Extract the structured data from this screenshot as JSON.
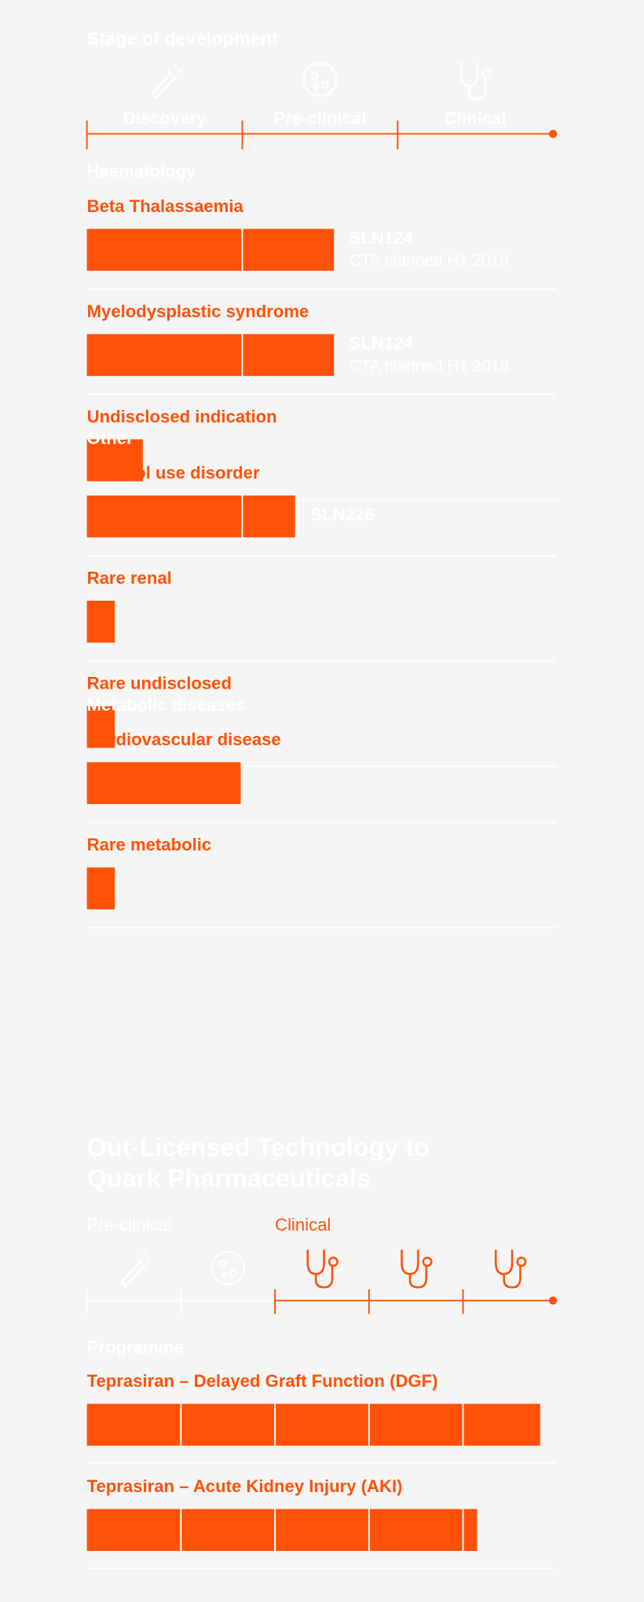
{
  "stage_chart": {
    "title": "Stage of development",
    "stages": [
      "Discovery",
      "Pre-clinical",
      "Clinical"
    ],
    "groups": [
      {
        "name": "Haematology",
        "programmes": [
          {
            "name": "Beta Thalassaemia",
            "progress": 1.59,
            "compound": "SLN124",
            "note": "CTA planned H1 2019"
          },
          {
            "name": "Myelodysplastic syndrome",
            "progress": 1.59,
            "compound": "SLN124",
            "note": "CTA planned H1 2019"
          },
          {
            "name": "Undisclosed indication",
            "progress": 0.36
          }
        ]
      },
      {
        "name": "Other",
        "programmes": [
          {
            "name": "Alcohol use disorder",
            "progress": 1.34,
            "compound": "SLN226"
          },
          {
            "name": "Rare renal",
            "progress": 0.18
          },
          {
            "name": "Rare undisclosed",
            "progress": 0.18
          }
        ]
      },
      {
        "name": "Metabolic diseases",
        "programmes": [
          {
            "name": "Cardiovascular disease",
            "progress": 0.99
          },
          {
            "name": "Rare metabolic",
            "progress": 0.18
          }
        ]
      }
    ]
  },
  "licensed_chart": {
    "title_lines": [
      "Out-Licensed Technology to",
      "Quark Pharmaceuticals"
    ],
    "phases": [
      {
        "name": "Pre-clinical",
        "segments": 2
      },
      {
        "name": "Clinical",
        "segments": 3
      }
    ],
    "programme_label": "Programme",
    "programmes": [
      {
        "name": "Teprasiran – Delayed Graft Function (DGF)",
        "progress": 4.82
      },
      {
        "name": "Teprasiran – Acute Kidney Injury (AKI)",
        "progress": 4.15
      }
    ]
  }
}
